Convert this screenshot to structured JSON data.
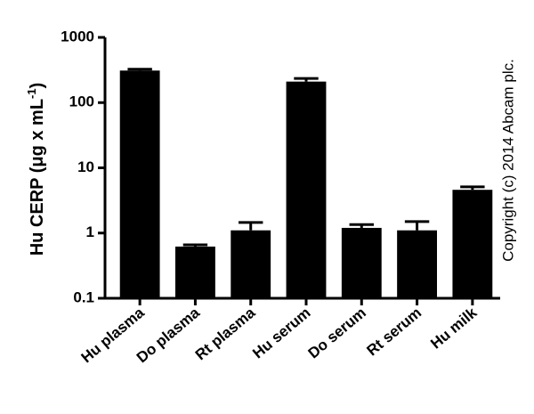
{
  "chart_data": {
    "type": "bar",
    "y_label": [
      "Hu CERP (μg x mL",
      "-1",
      ")"
    ],
    "annotation": "Copyright (c) 2014 Abcam plc.",
    "categories": [
      "Hu plasma",
      "Do plasma",
      "Rt plasma",
      "Hu serum",
      "Do serum",
      "Rt serum",
      "Hu milk"
    ],
    "values": [
      310,
      0.62,
      1.1,
      210,
      1.2,
      1.1,
      4.6
    ],
    "errors": [
      15,
      0.04,
      0.35,
      25,
      0.15,
      0.4,
      0.5
    ],
    "color": "#000000",
    "log_scale": true,
    "ylim": [
      0.1,
      1000
    ],
    "yticks": [
      1000,
      100,
      10,
      1,
      0.1
    ]
  }
}
